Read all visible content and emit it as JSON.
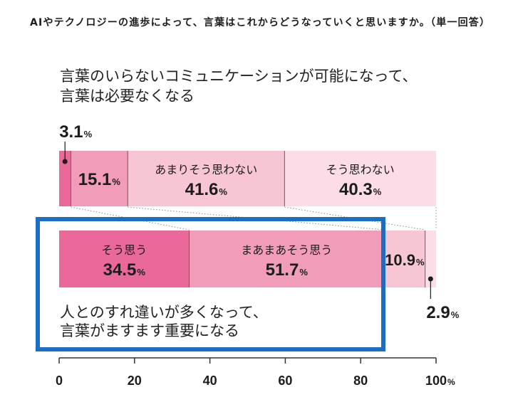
{
  "chart_data": {
    "type": "bar",
    "orientation": "horizontal",
    "stacked": true,
    "title": "AIやテクノロジーの進歩によって、言葉はこれからどうなっていくと思いますか。（単一回答）",
    "categories": [
      [
        "言葉のいらないコミュニケーションが可能になって、",
        "言葉は必要なくなる"
      ],
      [
        "人とのすれ違いが多くなって、",
        "言葉がますます重要になる"
      ]
    ],
    "series": [
      {
        "name": "そう思う",
        "values": [
          3.1,
          34.5
        ],
        "color": "#e9699b"
      },
      {
        "name": "まあまあそう思う",
        "values": [
          15.1,
          51.7
        ],
        "color": "#f19dba"
      },
      {
        "name": "あまりそう思わない",
        "values": [
          41.6,
          10.9
        ],
        "color": "#f7c5d4"
      },
      {
        "name": "そう思わない",
        "values": [
          40.3,
          2.9
        ],
        "color": "#fcdde7"
      }
    ],
    "unit": "%",
    "xlim": [
      0,
      100
    ],
    "xticks": [
      0,
      20,
      40,
      60,
      80,
      100
    ],
    "grid": false,
    "name_shown": [
      [
        false,
        false,
        true,
        true
      ],
      [
        true,
        true,
        false,
        false
      ]
    ],
    "label_placement": [
      [
        "above",
        "inside",
        "inside",
        "inside"
      ],
      [
        "inside",
        "inside",
        "inside",
        "below"
      ]
    ],
    "highlighted_category": 1,
    "highlight_color": "#1c6ec2"
  }
}
